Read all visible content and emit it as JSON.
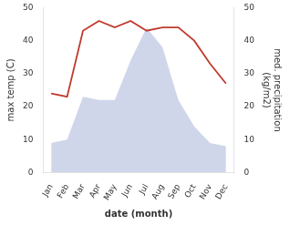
{
  "chart_data": {
    "type": "line",
    "xlabel": "date (month)",
    "ylabel": "max temp (C)",
    "y2label": "med. precipitation\n(kg/m2)",
    "categories": [
      "Jan",
      "Feb",
      "Mar",
      "Apr",
      "May",
      "Jun",
      "Jul",
      "Aug",
      "Sep",
      "Oct",
      "Nov",
      "Dec"
    ],
    "ylim": [
      0,
      50
    ],
    "yticks": [
      0,
      10,
      20,
      30,
      40,
      50
    ],
    "y2lim": [
      0,
      50
    ],
    "y2ticks": [
      0,
      10,
      20,
      30,
      40,
      50
    ],
    "grid": false,
    "series": [
      {
        "type": "area",
        "color": "#aab4d8",
        "values": [
          9,
          10,
          23,
          22,
          22,
          34,
          44,
          38,
          22,
          14,
          9,
          8
        ]
      },
      {
        "type": "line",
        "color": "#c0392b",
        "axis": "y2",
        "values": [
          24,
          23,
          43,
          46,
          44,
          46,
          43,
          44,
          44,
          40,
          33,
          27
        ]
      }
    ]
  }
}
